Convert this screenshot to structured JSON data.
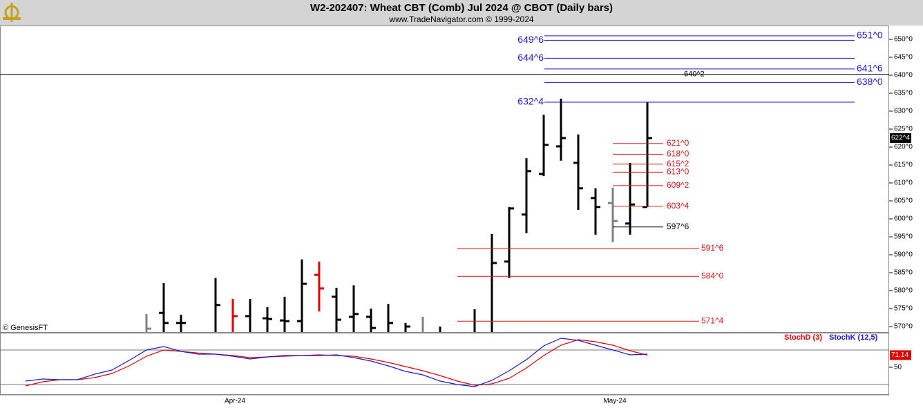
{
  "chart_data": [
    {
      "type": "ohlc",
      "title": "W2-202407:  Wheat CBT (Comb) Jul 2024 @ CBOT  (Daily bars)",
      "subtitle": "www.TradeNavigator.com © 1999-2024",
      "note": "© GenesisFT",
      "ylim": [
        568.46,
        653.85
      ],
      "yticks": [
        {
          "value": 570,
          "label": "570^0"
        },
        {
          "value": 575,
          "label": "575^0"
        },
        {
          "value": 580,
          "label": "580^0"
        },
        {
          "value": 585,
          "label": "585^0"
        },
        {
          "value": 590,
          "label": "590^0"
        },
        {
          "value": 595,
          "label": "595^0"
        },
        {
          "value": 600,
          "label": "600^0"
        },
        {
          "value": 605,
          "label": "605^0"
        },
        {
          "value": 610,
          "label": "610^0"
        },
        {
          "value": 615,
          "label": "615^0"
        },
        {
          "value": 620,
          "label": "620^0"
        },
        {
          "value": 625,
          "label": "625^0"
        },
        {
          "value": 630,
          "label": "630^0"
        },
        {
          "value": 635,
          "label": "635^0"
        },
        {
          "value": 640,
          "label": "640^0"
        },
        {
          "value": 645,
          "label": "645^0"
        },
        {
          "value": 650,
          "label": "650^0"
        }
      ],
      "open": [
        null,
        null,
        null,
        null,
        null,
        null,
        null,
        null,
        573.8,
        571,
        null,
        null,
        null,
        572.9,
        572.3,
        571.7,
        571.5,
        584.4,
        578.3,
        572.7,
        572.7,
        null,
        null,
        null,
        null,
        null,
        null,
        null,
        588.1,
        601.2,
        612.5,
        620.2,
        615.6,
        605.8,
        604.4,
        598.7,
        603.3
      ],
      "high": [
        null,
        null,
        null,
        null,
        null,
        null,
        null,
        573.5,
        582.1,
        573.3,
        null,
        583.5,
        577.7,
        577.7,
        575.4,
        578.3,
        588.7,
        588.1,
        580.8,
        581.5,
        575,
        576.3,
        571,
        572.7,
        570,
        null,
        574.8,
        595.8,
        603.3,
        616.9,
        629,
        633.5,
        623.5,
        608.5,
        608.7,
        615.6,
        632.5
      ],
      "low": [
        null,
        null,
        null,
        null,
        null,
        null,
        null,
        566,
        566,
        566,
        null,
        566,
        566,
        566,
        566,
        566,
        566,
        574.2,
        566,
        566,
        566,
        566,
        566,
        566,
        566,
        null,
        566,
        566,
        583.5,
        596,
        611.9,
        616.2,
        602.5,
        595.6,
        593.5,
        595.6,
        603.3
      ],
      "close": [
        null,
        null,
        null,
        null,
        null,
        null,
        null,
        569.4,
        571,
        571,
        null,
        576,
        572.9,
        null,
        572.1,
        571.5,
        581.9,
        580.6,
        571.9,
        573.5,
        569.6,
        571,
        570,
        null,
        null,
        null,
        null,
        587.7,
        602.9,
        613.3,
        620.6,
        622.5,
        608.5,
        603.3,
        599.4,
        604,
        622.5
      ],
      "bar_colors": [
        null,
        null,
        null,
        null,
        null,
        null,
        null,
        "#808080",
        "#000000",
        "#000000",
        null,
        "#000000",
        "#e00000",
        "#000000",
        "#000000",
        "#000000",
        "#000000",
        "#e00000",
        "#000000",
        "#000000",
        "#000000",
        "#000000",
        "#000000",
        "#808080",
        "#000000",
        null,
        "#000000",
        "#000000",
        "#000000",
        "#000000",
        "#000000",
        "#000000",
        "#000000",
        "#000000",
        "#808080",
        "#000000",
        "#000000"
      ],
      "last_label": "622^4",
      "levels": [
        {
          "value": 651,
          "label": "651^0",
          "color": "#1a1ad0"
        },
        {
          "value": 649.75,
          "label": "649^6",
          "color": "#1a1ad0"
        },
        {
          "value": 644.75,
          "label": "644^6",
          "color": "#1a1ad0"
        },
        {
          "value": 641.75,
          "label": "641^6",
          "color": "#1a1ad0"
        },
        {
          "value": 638,
          "label": "638^0",
          "color": "#1a1ad0"
        },
        {
          "value": 632.5,
          "label": "632^4",
          "color": "#1a1ad0"
        },
        {
          "value": 640.25,
          "label": "640^2",
          "color": "#000000"
        },
        {
          "value": 621,
          "label": "621^0",
          "color": "#d01818"
        },
        {
          "value": 618,
          "label": "618^0",
          "color": "#d01818"
        },
        {
          "value": 615.25,
          "label": "615^2",
          "color": "#d01818"
        },
        {
          "value": 613,
          "label": "613^0",
          "color": "#d01818"
        },
        {
          "value": 609.25,
          "label": "609^2",
          "color": "#d01818"
        },
        {
          "value": 603.5,
          "label": "603^4",
          "color": "#d01818"
        },
        {
          "value": 597.75,
          "label": "597^6",
          "color": "#000000"
        },
        {
          "value": 591.75,
          "label": "591^6",
          "color": "#d01818"
        },
        {
          "value": 584,
          "label": "584^0",
          "color": "#d01818"
        },
        {
          "value": 571.5,
          "label": "571^4",
          "color": "#d01818"
        }
      ]
    },
    {
      "type": "line",
      "categories": [
        null,
        null,
        null,
        null,
        null,
        null,
        null,
        null,
        null,
        null,
        null,
        null,
        "Apr-24",
        null,
        null,
        null,
        null,
        null,
        null,
        null,
        null,
        null,
        null,
        null,
        null,
        null,
        null,
        null,
        null,
        null,
        null,
        null,
        null,
        null,
        "May-24",
        null,
        null
      ],
      "ylim": [
        2,
        108.8
      ],
      "yticks": [
        50
      ],
      "ref_lines": [
        80,
        20
      ],
      "series": [
        {
          "name": "StochD (3)",
          "color": "#e00000",
          "values": [
            17.6,
            24.8,
            28.4,
            28.4,
            32,
            39.2,
            52.4,
            69.2,
            80,
            77.6,
            74.8,
            72.8,
            70.4,
            66.8,
            68,
            69.2,
            70.4,
            71.6,
            70.4,
            69.2,
            64.4,
            58.4,
            51.2,
            44,
            35.6,
            26,
            18.8,
            21.2,
            30.8,
            48.8,
            70.4,
            88.4,
            98,
            94.4,
            88.4,
            78.8,
            71.14
          ]
        },
        {
          "name": "StochK (12,5)",
          "color": "#1a1ad0",
          "values": [
            26,
            29.6,
            28.4,
            28.4,
            38,
            45.2,
            62,
            80,
            86,
            77.6,
            72.8,
            72.8,
            69.2,
            64.4,
            68,
            70.4,
            70.4,
            70.4,
            71.6,
            66.8,
            60.8,
            52.4,
            42.8,
            36.8,
            26,
            20,
            16.4,
            27.2,
            44,
            63.2,
            87.2,
            100.4,
            96.8,
            88.4,
            80,
            71.6,
            72.8
          ]
        }
      ]
    }
  ]
}
